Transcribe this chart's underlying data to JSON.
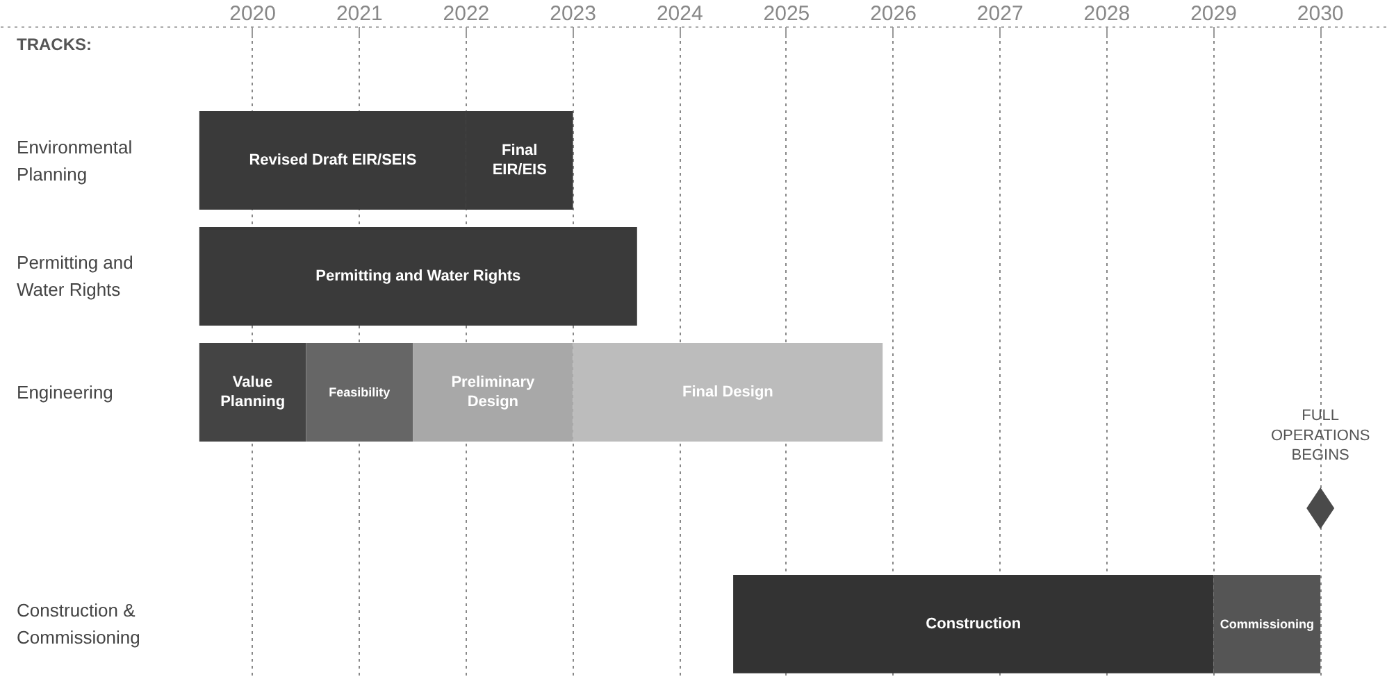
{
  "chart_data": {
    "type": "bar",
    "orientation": "horizontal",
    "ylabel": "TRACKS:",
    "categories": [
      "Environmental Planning",
      "Permitting and Water Rights",
      "Engineering",
      null,
      "Construction & Commissioning"
    ],
    "xlim": [
      2017.64,
      2030.63
    ],
    "xticks": [
      2020,
      2021,
      2022,
      2023,
      2024,
      2025,
      2026,
      2027,
      2028,
      2029,
      2030
    ],
    "grid": "x",
    "line_style": "dotted",
    "series": [
      {
        "color": "#3a3a3a",
        "base": [
          2019.5,
          null,
          null,
          null,
          null
        ],
        "values": [
          2.5,
          null,
          null,
          null,
          null
        ],
        "value_labels": [
          "Revised Draft EIR/SEIS",
          null,
          null,
          null,
          null
        ]
      },
      {
        "color": "#3a3a3a",
        "base": [
          2022,
          null,
          null,
          null,
          null
        ],
        "values": [
          1,
          null,
          null,
          null,
          null
        ],
        "value_labels": [
          "Final EIR/EIS",
          null,
          null,
          null,
          null
        ]
      },
      {
        "color": "#3a3a3a",
        "base": [
          null,
          2019.5,
          null,
          null,
          null
        ],
        "values": [
          null,
          4.1,
          null,
          null,
          null
        ],
        "value_labels": [
          null,
          "Permitting and Water Rights",
          null,
          null,
          null
        ]
      },
      {
        "color": "#444444",
        "base": [
          null,
          null,
          2019.5,
          null,
          null
        ],
        "values": [
          null,
          null,
          1,
          null,
          null
        ],
        "value_labels": [
          null,
          null,
          "Value Planning",
          null,
          null
        ]
      },
      {
        "color": "#666666",
        "base": [
          null,
          null,
          2020.5,
          null,
          null
        ],
        "values": [
          null,
          null,
          1,
          null,
          null
        ],
        "value_labels": [
          null,
          null,
          "Feasibility",
          null,
          null
        ]
      },
      {
        "color": "#a8a8a8",
        "base": [
          null,
          null,
          2021.5,
          null,
          null
        ],
        "values": [
          null,
          null,
          1.5,
          null,
          null
        ],
        "value_labels": [
          null,
          null,
          "Preliminary Design",
          null,
          null
        ]
      },
      {
        "color": "#bcbcbc",
        "base": [
          null,
          null,
          2023,
          null,
          null
        ],
        "values": [
          null,
          null,
          2.9,
          null,
          null
        ],
        "value_labels": [
          null,
          null,
          "Final Design",
          null,
          null
        ]
      },
      {
        "color": "#333333",
        "base": [
          null,
          null,
          null,
          null,
          2024.5
        ],
        "values": [
          null,
          null,
          null,
          null,
          4.5
        ],
        "value_labels": [
          null,
          null,
          null,
          null,
          "Construction"
        ]
      },
      {
        "color": "#555555",
        "base": [
          null,
          null,
          null,
          null,
          2029
        ],
        "values": [
          null,
          null,
          null,
          null,
          1
        ],
        "value_labels": [
          null,
          null,
          null,
          null,
          "Commissioning"
        ]
      },
      {
        "type": "scatter",
        "marker": "diamond",
        "color": "#4a4a4a",
        "values": [
          null,
          null,
          null,
          2030,
          null
        ],
        "value_labels": [
          null,
          null,
          null,
          "FULL OPERATIONS BEGINS",
          null
        ]
      }
    ]
  }
}
